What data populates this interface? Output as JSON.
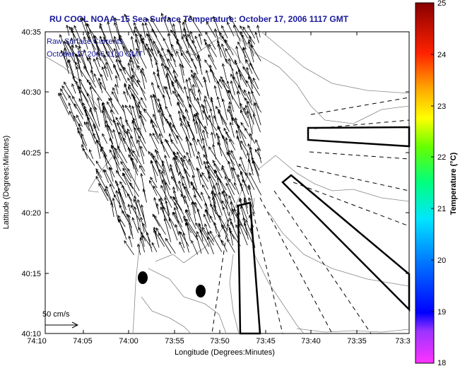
{
  "title": "RU COOL  NOAA–15  Sea Surface Temperature:  October 17, 2006 1117 GMT",
  "overlay": {
    "line1": "Raw Surface Currents",
    "line2": "October 17 2006 1100 GMT"
  },
  "xaxis": {
    "label": "Longitude (Degrees:Minutes)",
    "ticks": [
      "74:10",
      "74:05",
      "74:00",
      "73:55",
      "73:50",
      "73:45",
      "73:40",
      "73:35",
      "73:3"
    ]
  },
  "yaxis": {
    "label": "Latitude (Degrees:Minutes)",
    "ticks": [
      "40:35",
      "40:30",
      "40:25",
      "40:20",
      "40:15",
      "40:10"
    ]
  },
  "colorbar": {
    "label": "Temperature (°C)",
    "ticks": [
      "25",
      "24",
      "23",
      "22",
      "21",
      "20",
      "19",
      "18"
    ],
    "range": [
      18,
      25
    ]
  },
  "scale_vector": {
    "label": "50 cm/s"
  },
  "colors": {
    "title": "#1a1a9c",
    "land": "#ffffff",
    "contour": "#888888",
    "vectors": "#000000"
  }
}
